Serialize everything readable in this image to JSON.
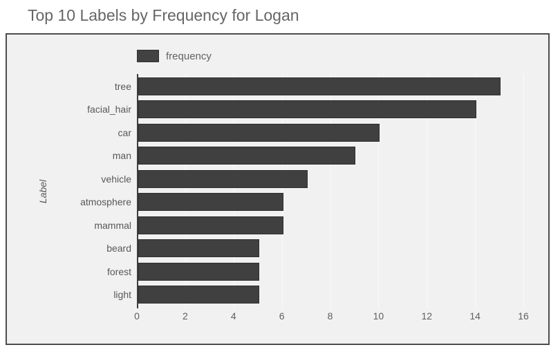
{
  "title": "Top 10 Labels by Frequency for Logan",
  "legend": {
    "label": "frequency"
  },
  "colors": {
    "bar": "#404040",
    "panel_background": "#f1f1f1",
    "panel_border": "#4c4c4c",
    "title_text": "#666666",
    "tick_text": "#5f5f5f",
    "gridline": "#fafafa"
  },
  "chart_data": {
    "type": "bar",
    "orientation": "horizontal",
    "title": "Top 10 Labels by Frequency for Logan",
    "categories": [
      "tree",
      "facial_hair",
      "car",
      "man",
      "vehicle",
      "atmosphere",
      "mammal",
      "beard",
      "forest",
      "light"
    ],
    "values": [
      15,
      14,
      10,
      9,
      7,
      6,
      6,
      5,
      5,
      5
    ],
    "series_name": "frequency",
    "xlabel": "",
    "ylabel": "Label",
    "xlim": [
      0,
      16
    ],
    "xticks": [
      0,
      2,
      4,
      6,
      8,
      10,
      12,
      14,
      16
    ],
    "grid": true,
    "legend_position": "top-left"
  }
}
